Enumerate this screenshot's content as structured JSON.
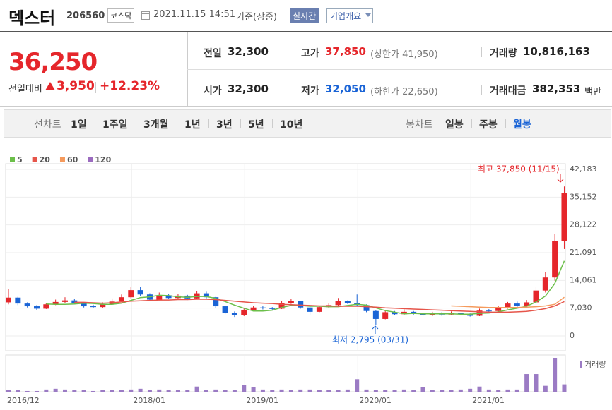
{
  "header": {
    "name": "덱스터",
    "code": "206560",
    "market": "코스닥",
    "time": "2021.11.15 14:51",
    "basis": "기준(장중)",
    "realtime": "실시간",
    "company": "기업개요"
  },
  "quote": {
    "price": "36,250",
    "change_label": "전일대비",
    "change": "3,950",
    "rate": "+12.23%",
    "fields": [
      {
        "label": "전일",
        "value": "32,300"
      },
      {
        "label": "고가",
        "value": "37,850",
        "note": "(상한가 41,950)"
      },
      {
        "label": "거래량",
        "value": "10,816,163"
      },
      {
        "label": "시가",
        "value": "32,300"
      },
      {
        "label": "저가",
        "value": "32,050",
        "note": "(하한가 22,650)"
      },
      {
        "label": "거래대금",
        "value": "382,353",
        "unit": "백만"
      }
    ]
  },
  "tabs": {
    "line_label": "선차트",
    "line": [
      "1일",
      "1주일",
      "3개월",
      "1년",
      "3년",
      "5년",
      "10년"
    ],
    "candle_label": "봉차트",
    "candle": [
      "일봉",
      "주봉",
      "월봉"
    ]
  },
  "chart_data": {
    "type": "candlestick",
    "categories": [
      "2016/12",
      null,
      null,
      null,
      null,
      null,
      null,
      null,
      null,
      null,
      null,
      null,
      null,
      "2018/01",
      null,
      null,
      null,
      null,
      null,
      null,
      null,
      null,
      null,
      null,
      null,
      "2019/01",
      null,
      null,
      null,
      null,
      null,
      null,
      null,
      null,
      null,
      null,
      null,
      "2020/01",
      null,
      null,
      null,
      null,
      null,
      null,
      null,
      null,
      null,
      null,
      null,
      "2021/01",
      null,
      null,
      null,
      null,
      null,
      null,
      null,
      null,
      null,
      null
    ],
    "open": [
      8500,
      9700,
      8200,
      7500,
      6900,
      8000,
      8600,
      9000,
      8400,
      7500,
      7300,
      8100,
      8700,
      9800,
      11600,
      10500,
      9200,
      10300,
      9600,
      10200,
      9500,
      10800,
      9800,
      7500,
      5800,
      5200,
      6500,
      7200,
      7000,
      6900,
      8400,
      8800,
      7200,
      6100,
      7300,
      7800,
      8800,
      8400,
      7800,
      6300,
      4300,
      6000,
      5500,
      6100,
      5700,
      5200,
      5800,
      5400,
      5800,
      5500,
      5100,
      6400,
      6300,
      7100,
      8200,
      7600,
      8500,
      11500,
      14800,
      24000
    ],
    "close": [
      9700,
      8200,
      7500,
      6900,
      8000,
      8600,
      9000,
      8400,
      7500,
      7300,
      8100,
      8700,
      9800,
      11600,
      10500,
      9200,
      10300,
      9600,
      10200,
      9500,
      10800,
      9800,
      7500,
      5800,
      5200,
      6500,
      7200,
      7000,
      6900,
      8400,
      8800,
      7200,
      6100,
      7300,
      7800,
      8800,
      8400,
      7800,
      6300,
      4300,
      6000,
      5500,
      6100,
      5700,
      5200,
      5800,
      5400,
      5800,
      5500,
      5100,
      6400,
      6300,
      7100,
      8200,
      7600,
      8500,
      11500,
      14800,
      24000,
      36250
    ],
    "high": [
      11800,
      9900,
      8500,
      7800,
      8400,
      9200,
      9800,
      9300,
      8500,
      7900,
      8500,
      9500,
      10500,
      12500,
      12400,
      10800,
      11000,
      10600,
      10700,
      10400,
      11400,
      11200,
      9900,
      7700,
      6200,
      7000,
      7600,
      7500,
      7300,
      8900,
      9300,
      8900,
      7400,
      7600,
      8200,
      9600,
      9000,
      10500,
      8000,
      6500,
      6500,
      6300,
      6700,
      6300,
      5900,
      6100,
      6000,
      6200,
      5900,
      5700,
      6900,
      6800,
      7600,
      8600,
      8700,
      9100,
      12400,
      16200,
      25800,
      37850
    ],
    "low": [
      8000,
      7800,
      7200,
      6600,
      6800,
      7800,
      8300,
      8000,
      7200,
      7000,
      7100,
      7900,
      8500,
      9500,
      10000,
      8900,
      9000,
      9300,
      9200,
      9100,
      9400,
      9500,
      7000,
      5500,
      4800,
      5000,
      6300,
      6700,
      6600,
      6800,
      8100,
      6900,
      5400,
      6000,
      7100,
      7600,
      8100,
      7500,
      6000,
      2795,
      4200,
      5200,
      5300,
      5400,
      4900,
      5000,
      5100,
      5200,
      5200,
      4900,
      5000,
      5900,
      6100,
      6900,
      7300,
      7400,
      8200,
      11000,
      14000,
      22000
    ],
    "up_color": "#e5262b",
    "down_color": "#1a64d6",
    "series": [
      {
        "name": "5",
        "color": "#6cbf4a",
        "values": [
          null,
          null,
          null,
          null,
          8100,
          8000,
          8000,
          8100,
          8300,
          8200,
          8000,
          8000,
          8300,
          9000,
          9700,
          9900,
          10300,
          10200,
          9900,
          9800,
          10000,
          10000,
          9500,
          8700,
          7800,
          7000,
          6300,
          6300,
          6500,
          7200,
          7700,
          7700,
          7500,
          7500,
          7400,
          7400,
          7700,
          8000,
          7800,
          7100,
          6400,
          6000,
          5600,
          5700,
          5600,
          5600,
          5600,
          5600,
          5500,
          5500,
          5700,
          5800,
          6100,
          6600,
          7000,
          7500,
          8600,
          10100,
          13300,
          19000
        ]
      },
      {
        "name": "20",
        "color": "#e6554a",
        "values": [
          null,
          null,
          null,
          null,
          null,
          null,
          null,
          8500,
          8500,
          8400,
          8300,
          8400,
          8600,
          8800,
          8900,
          9000,
          9100,
          9100,
          9200,
          9200,
          9300,
          9300,
          9200,
          9000,
          8800,
          8600,
          8400,
          8300,
          8200,
          8000,
          7900,
          7800,
          7700,
          7600,
          7600,
          7500,
          7500,
          7500,
          7400,
          7300,
          7100,
          7000,
          6900,
          6800,
          6700,
          6600,
          6500,
          6400,
          6300,
          6200,
          6100,
          6000,
          6000,
          6000,
          6100,
          6200,
          6500,
          6900,
          7600,
          8700
        ]
      },
      {
        "name": "60",
        "color": "#f59a5c",
        "values": [
          null,
          null,
          null,
          null,
          null,
          null,
          null,
          null,
          null,
          null,
          null,
          null,
          null,
          null,
          null,
          null,
          null,
          null,
          null,
          null,
          null,
          null,
          null,
          null,
          null,
          null,
          null,
          null,
          null,
          null,
          null,
          null,
          null,
          null,
          null,
          null,
          null,
          null,
          null,
          null,
          null,
          null,
          null,
          null,
          null,
          null,
          null,
          7600,
          7500,
          7400,
          7300,
          7200,
          7200,
          7200,
          7200,
          7300,
          7400,
          7600,
          8000,
          9800
        ]
      },
      {
        "name": "120",
        "color": "#9b6bbf",
        "values": [
          null,
          null,
          null,
          null,
          null,
          null,
          null,
          null,
          null,
          null,
          null,
          null,
          null,
          null,
          null,
          null,
          null,
          null,
          null,
          null,
          null,
          null,
          null,
          null,
          null,
          null,
          null,
          null,
          null,
          null,
          null,
          null,
          null,
          null,
          null,
          null,
          null,
          null,
          null,
          null,
          null,
          null,
          null,
          null,
          null,
          null,
          null,
          null,
          null,
          null,
          null,
          null,
          null,
          null,
          null,
          null,
          null,
          null,
          null,
          null
        ]
      }
    ],
    "volume": {
      "name": "거래량",
      "color": "#9b7bc4",
      "ylim": [
        0,
        50000000
      ],
      "values": [
        2000000,
        2000000,
        1000000,
        1000000,
        3000000,
        4000000,
        3000000,
        2000000,
        2000000,
        1000000,
        2000000,
        2000000,
        2000000,
        3000000,
        4000000,
        2000000,
        3000000,
        2000000,
        2000000,
        2000000,
        7000000,
        2000000,
        3000000,
        2000000,
        2000000,
        9000000,
        6000000,
        3000000,
        2000000,
        3000000,
        2000000,
        3000000,
        3000000,
        2000000,
        2000000,
        2000000,
        3000000,
        17000000,
        3000000,
        2000000,
        2000000,
        2000000,
        3000000,
        2000000,
        6000000,
        2000000,
        2000000,
        2000000,
        3000000,
        4000000,
        7000000,
        3000000,
        2000000,
        3000000,
        3000000,
        24000000,
        24000000,
        8000000,
        46000000,
        10000000
      ]
    },
    "ylim": [
      0,
      42183
    ],
    "yticks": [
      0,
      {
        "value": 7030,
        "label": "7,030"
      },
      {
        "value": 14061,
        "label": "14,061"
      },
      {
        "value": 21091,
        "label": "21,091"
      },
      {
        "value": 28122,
        "label": "28,122"
      },
      {
        "value": 35152,
        "label": "35,152"
      },
      {
        "value": 42183,
        "label": "42,183"
      }
    ],
    "grid": true,
    "max_label": "최고 37,850 (11/15)",
    "min_label": "최저 2,795 (03/31)"
  }
}
